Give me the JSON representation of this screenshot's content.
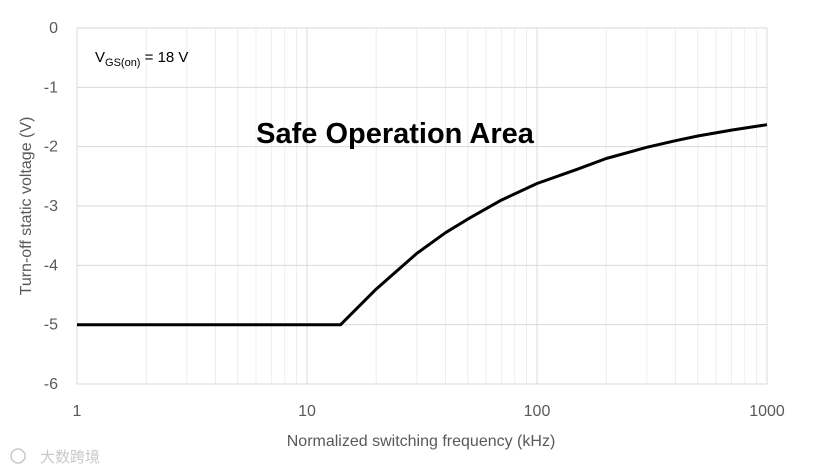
{
  "chart_data": {
    "type": "line",
    "xlabel": "Normalized switching frequency (kHz)",
    "ylabel": "Turn-off static voltage (V)",
    "xscale": "log",
    "xlim": [
      1,
      1000
    ],
    "ylim": [
      -6,
      0
    ],
    "xticks": [
      1,
      10,
      100,
      1000
    ],
    "xtick_labels": [
      "1",
      "10",
      "100",
      "1000"
    ],
    "yticks": [
      0,
      -1,
      -2,
      -3,
      -4,
      -5,
      -6
    ],
    "ytick_labels": [
      "0",
      "-1",
      "-2",
      "-3",
      "-4",
      "-5",
      "-6"
    ],
    "grid": true,
    "minor_grid_x": true,
    "series": [
      {
        "color": "#000000",
        "x": [
          1,
          14,
          20,
          30,
          40,
          50,
          70,
          100,
          150,
          200,
          300,
          400,
          500,
          700,
          1000
        ],
        "y": [
          -5,
          -5,
          -4.4,
          -3.8,
          -3.45,
          -3.22,
          -2.9,
          -2.62,
          -2.38,
          -2.2,
          -2.01,
          -1.9,
          -1.82,
          -1.72,
          -1.63
        ]
      }
    ],
    "annotations": {
      "region_label": "Safe Operation Area",
      "condition": {
        "main": "V",
        "sub": "GS(on)",
        "rest": " = 18 V"
      }
    }
  },
  "watermark": "大数跨境"
}
